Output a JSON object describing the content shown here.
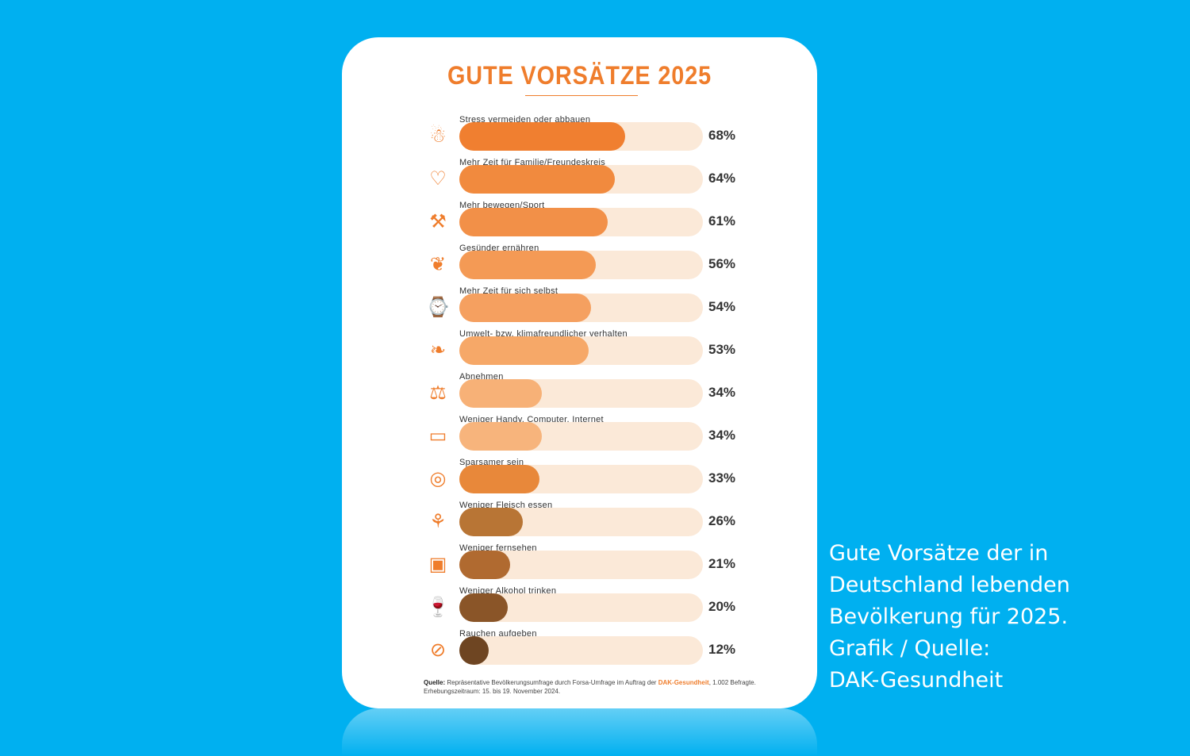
{
  "chart_data": {
    "type": "bar",
    "orientation": "horizontal",
    "title": "GUTE VORSÄTZE 2025",
    "xlim": [
      0,
      100
    ],
    "unit": "%",
    "categories": [
      "Stress vermeiden oder abbauen",
      "Mehr Zeit für Familie/Freundeskreis",
      "Mehr bewegen/Sport",
      "Gesünder ernähren",
      "Mehr Zeit für sich selbst",
      "Umwelt- bzw. klimafreundlicher verhalten",
      "Abnehmen",
      "Weniger Handy, Computer, Internet",
      "Sparsamer sein",
      "Weniger Fleisch essen",
      "Weniger fernsehen",
      "Weniger Alkohol trinken",
      "Rauchen aufgeben"
    ],
    "values": [
      68,
      64,
      61,
      56,
      54,
      53,
      34,
      34,
      33,
      26,
      21,
      20,
      12
    ],
    "labels": [
      "68%",
      "64%",
      "61%",
      "56%",
      "54%",
      "53%",
      "34%",
      "34%",
      "33%",
      "26%",
      "21%",
      "20%",
      "12%"
    ],
    "colors": [
      "#f07f30",
      "#f18a3e",
      "#f29048",
      "#f49a55",
      "#f5a060",
      "#f6a868",
      "#f7b177",
      "#f7b47c",
      "#e8883a",
      "#b87535",
      "#b06a30",
      "#8a5528",
      "#6e4522"
    ],
    "icons": [
      "stress-icon",
      "heart-hand-icon",
      "dumbbell-icon",
      "apple-carrot-icon",
      "book-clock-icon",
      "leaf-hands-icon",
      "scale-icon",
      "devices-icon",
      "coins-icon",
      "meat-icon",
      "tv-icon",
      "wine-icon",
      "no-smoking-icon"
    ],
    "icon_glyphs": [
      "☃",
      "♡",
      "⚒",
      "❦",
      "⌚",
      "❧",
      "⚖",
      "▭",
      "◎",
      "⚘",
      "▣",
      "🍷",
      "⊘"
    ],
    "track_color": "#fbe9d8"
  },
  "source": {
    "label": "Quelle:",
    "text1": " Repräsentative Bevölkerungsumfrage durch Forsa-Umfrage im Auftrag der ",
    "brand": "DAK-Gesundheit",
    "text2": ", 1.002 Befragte.",
    "line2": "Erhebungszeitraum: 15. bis 19. November 2024."
  },
  "caption": [
    "Gute Vorsätze der in",
    "Deutschland lebenden",
    "Bevölkerung für 2025.",
    "Grafik / Quelle:",
    "DAK-Gesundheit"
  ]
}
